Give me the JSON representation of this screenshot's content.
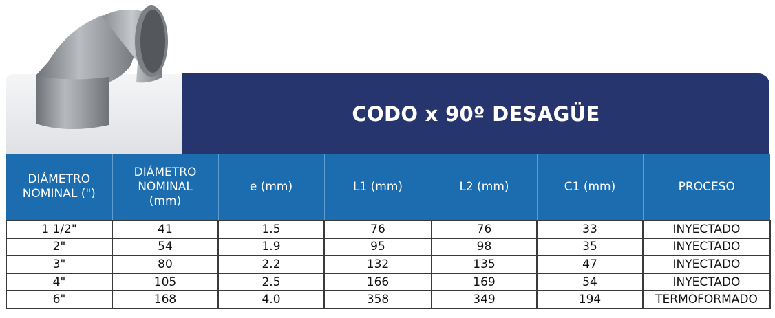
{
  "header": {
    "title": "CODO x 90º DESAGÜE"
  },
  "table": {
    "columns": [
      [
        "DIÁMETRO",
        "NOMINAL (\")"
      ],
      [
        "DIÁMETRO",
        "NOMINAL",
        "(mm)"
      ],
      [
        "e (mm)"
      ],
      [
        "L1 (mm)"
      ],
      [
        "L2 (mm)"
      ],
      [
        "C1 (mm)"
      ],
      [
        "PROCESO"
      ]
    ],
    "rows": [
      [
        "1 1/2\"",
        "41",
        "1.5",
        "76",
        "76",
        "33",
        "INYECTADO"
      ],
      [
        "2\"",
        "54",
        "1.9",
        "95",
        "98",
        "35",
        "INYECTADO"
      ],
      [
        "3\"",
        "80",
        "2.2",
        "132",
        "135",
        "47",
        "INYECTADO"
      ],
      [
        "4\"",
        "105",
        "2.5",
        "166",
        "169",
        "54",
        "INYECTADO"
      ],
      [
        "6\"",
        "168",
        "4.0",
        "358",
        "349",
        "194",
        "TERMOFORMADO"
      ]
    ]
  }
}
